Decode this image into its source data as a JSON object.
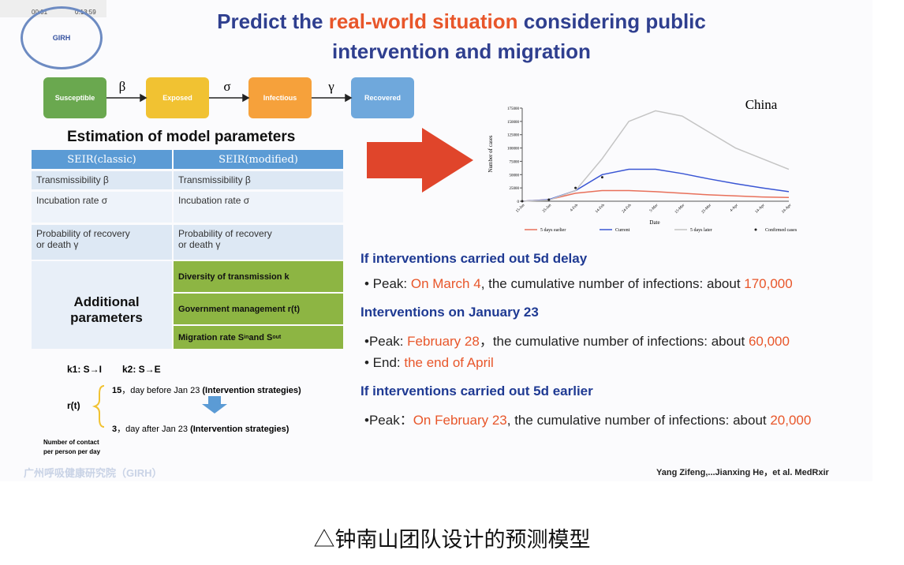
{
  "player": {
    "time": "00:01",
    "duration": "0:13:59"
  },
  "slide": {
    "logo": "GIRH",
    "title": [
      "Predict the ",
      "real-world situation",
      " considering public"
    ],
    "title2": "intervention and migration",
    "flow": [
      "Susceptible",
      "Exposed",
      "Infectious",
      "Recovered"
    ],
    "rates": [
      "β",
      "σ",
      "γ"
    ],
    "table": {
      "title": "Estimation of model parameters",
      "headers": [
        "SEIR(classic)",
        "SEIR(modified)"
      ],
      "rows": [
        [
          "Transmissibility β",
          "Transmissibility β"
        ],
        [
          "Incubation rate σ",
          "Incubation rate σ"
        ],
        [
          "Probability of recovery\nor death γ",
          "Probability of recovery\nor death γ"
        ]
      ],
      "additional_label": "Additional\nparameters",
      "additional": [
        "Diversity of transmission  k",
        "Government management r(t)"
      ],
      "migration": [
        "Migration rate S",
        "in",
        " and S",
        "out"
      ]
    },
    "rt": {
      "k1": "k1: S→I",
      "k2": "k2: S→E",
      "label": "r(t)",
      "before": [
        "15",
        "，day before Jan 23 ",
        "(Intervention strategies)"
      ],
      "after": [
        "3",
        "，day after Jan 23 ",
        "(Intervention strategies)"
      ],
      "note": "Number of contact\nper person per day"
    },
    "footer": "广州呼吸健康研究院（GIRH）",
    "findings": [
      {
        "heading": "If interventions carried out 5d delay",
        "lines": [
          [
            "• Peak: ",
            "On March 4",
            ", the cumulative number of infections: about ",
            "170,000"
          ]
        ]
      },
      {
        "heading": "Interventions on January 23",
        "lines": [
          [
            "•Peak: ",
            "February 28",
            "，the cumulative number of infections: about ",
            "60,000"
          ],
          [
            "• End: ",
            "the end of April"
          ]
        ]
      },
      {
        "heading": "If interventions carried out  5d earlier",
        "lines": [
          [
            "•Peak：",
            "On February 23",
            ", the cumulative number of infections: about ",
            "20,000"
          ]
        ]
      }
    ],
    "citation": "Yang Zifeng,...Jianxing He，et al. MedRxir"
  },
  "chart_data": {
    "type": "line",
    "title": "China",
    "x_label": "Date",
    "y_label": "Number of cases",
    "categories": [
      "15-Jan",
      "25-Jan",
      "4-Feb",
      "14-Feb",
      "24-Feb",
      "5-Mar",
      "15-Mar",
      "25-Mar",
      "4-Apr",
      "14-Apr",
      "24-Apr"
    ],
    "ylim": [
      0,
      175000
    ],
    "yticks": [
      0,
      25000,
      50000,
      75000,
      100000,
      125000,
      150000,
      175000
    ],
    "legend": "bottom",
    "series": [
      {
        "name": "5 days earlier",
        "color": "#e8705a",
        "values": [
          0,
          3000,
          15000,
          20000,
          20000,
          18000,
          15000,
          12000,
          10000,
          8000,
          7000
        ]
      },
      {
        "name": "Current",
        "color": "#3a56d4",
        "values": [
          0,
          3000,
          20000,
          50000,
          60000,
          60000,
          52000,
          42000,
          33000,
          25000,
          18000
        ]
      },
      {
        "name": "5 days later",
        "color": "#c4c4c4",
        "values": [
          0,
          2000,
          20000,
          80000,
          150000,
          170000,
          160000,
          130000,
          100000,
          80000,
          60000
        ]
      },
      {
        "name": "Confirmed cases",
        "color": "#222222",
        "marker": "dot",
        "values": [
          0,
          3000,
          25000,
          45000,
          null,
          null,
          null,
          null,
          null,
          null,
          null
        ]
      }
    ]
  },
  "caption": "△钟南山团队设计的预测模型"
}
